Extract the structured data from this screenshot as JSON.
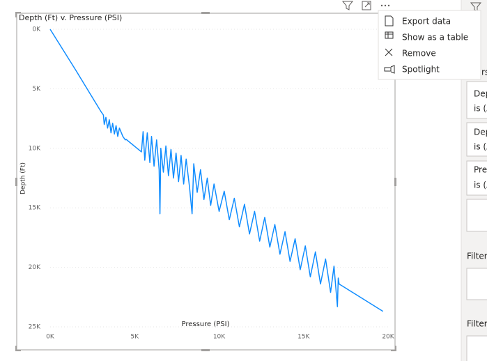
{
  "chart_data": {
    "type": "line",
    "title": "Depth (Ft) v. Pressure (PSI)",
    "x_label": "Pressure (PSI)",
    "y_label": "Depth (Ft)",
    "color": "#118dff",
    "y_inverted": true,
    "grid": true,
    "xlim": [
      0,
      20000
    ],
    "ylim": [
      0,
      25000
    ],
    "xticks": [
      {
        "value": 0,
        "label": "0K"
      },
      {
        "value": 5000,
        "label": "5K"
      },
      {
        "value": 10000,
        "label": "10K"
      },
      {
        "value": 15000,
        "label": "15K"
      },
      {
        "value": 20000,
        "label": "20K"
      }
    ],
    "yticks": [
      {
        "value": 0,
        "label": "0K"
      },
      {
        "value": 5000,
        "label": "5K"
      },
      {
        "value": 10000,
        "label": "10K"
      },
      {
        "value": 15000,
        "label": "15K"
      },
      {
        "value": 20000,
        "label": "20K"
      },
      {
        "value": 25000,
        "label": "25K"
      }
    ],
    "x": [
      0,
      1500,
      3000,
      3150,
      3200,
      3300,
      3400,
      3500,
      3600,
      3700,
      3800,
      3900,
      4000,
      4100,
      4300,
      4450,
      4500,
      5400,
      5500,
      5600,
      5750,
      5900,
      6000,
      6150,
      6300,
      6450,
      6500,
      6550,
      6700,
      6850,
      7000,
      7150,
      7300,
      7450,
      7600,
      7750,
      7900,
      8050,
      8250,
      8400,
      8500,
      8700,
      8900,
      9100,
      9300,
      9500,
      9700,
      10000,
      10300,
      10600,
      10900,
      11200,
      11500,
      11800,
      12100,
      12400,
      12700,
      13000,
      13300,
      13600,
      13900,
      14200,
      14500,
      14800,
      15100,
      15400,
      15700,
      16000,
      16300,
      16600,
      16800,
      17000,
      17050,
      17100,
      19700
    ],
    "values": [
      0,
      3400,
      6900,
      7200,
      8000,
      7400,
      8300,
      7600,
      8700,
      7900,
      8800,
      8100,
      9000,
      8300,
      9000,
      9300,
      9250,
      10300,
      8600,
      11000,
      8700,
      11200,
      9000,
      11500,
      9300,
      11800,
      15500,
      10000,
      12000,
      9800,
      12300,
      10100,
      12500,
      10400,
      12800,
      10600,
      13000,
      10900,
      13300,
      15500,
      11300,
      13700,
      11800,
      14300,
      12500,
      14800,
      13000,
      15300,
      13600,
      16000,
      14200,
      16600,
      14700,
      17200,
      15300,
      17800,
      15800,
      18300,
      16400,
      18900,
      17000,
      19500,
      17600,
      20200,
      18200,
      20800,
      18700,
      21400,
      19300,
      22100,
      19900,
      23300,
      20900,
      21400,
      23700
    ]
  },
  "menu": {
    "items": [
      "Export data",
      "Show as a table",
      "Remove",
      "Spotlight"
    ]
  },
  "filter_pane": {
    "header": "rs",
    "cards": [
      {
        "line1": "Dep",
        "line2": "is (A"
      },
      {
        "line1": "Dep",
        "line2": "is (A"
      },
      {
        "line1": "Pres",
        "line2": "is (A"
      }
    ],
    "sections": [
      "Filters",
      "Filters"
    ]
  }
}
